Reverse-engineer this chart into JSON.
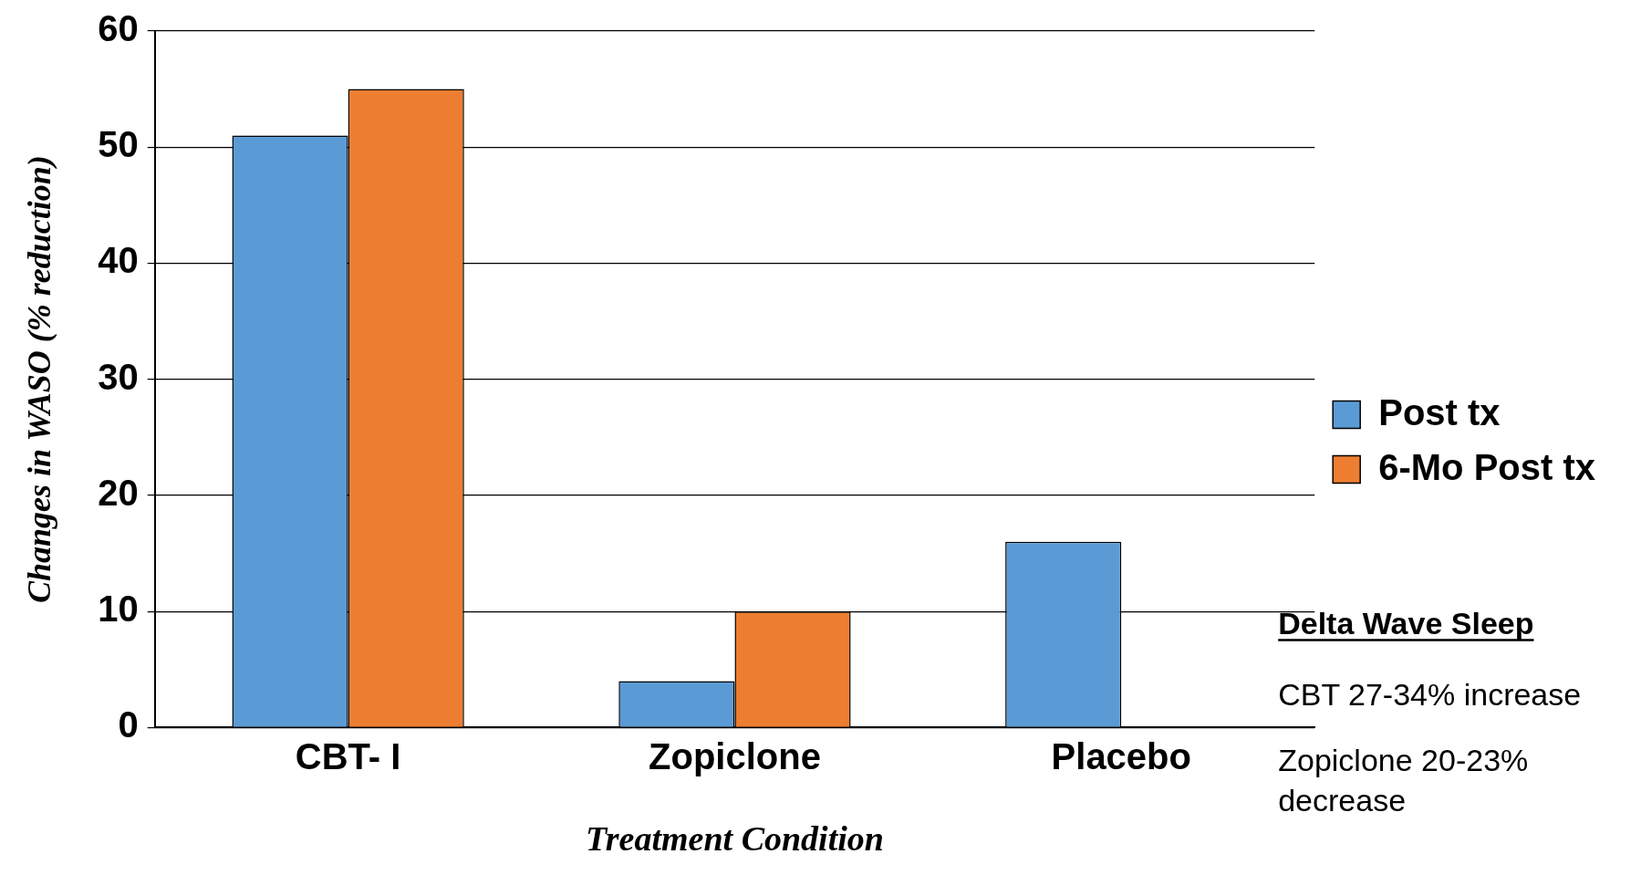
{
  "chart_data": {
    "type": "bar",
    "xlabel": "Treatment Condition",
    "ylabel": "Changes in WASO (% reduction)",
    "categories": [
      "CBT- I",
      "Zopiclone",
      "Placebo"
    ],
    "series": [
      {
        "name": "Post tx",
        "color": "#5b9bd5",
        "values": [
          51,
          4,
          16
        ]
      },
      {
        "name": "6-Mo Post tx",
        "color": "#ed7d31",
        "values": [
          55,
          10,
          null
        ]
      }
    ],
    "ylim": [
      0,
      60
    ],
    "yticks": [
      0,
      10,
      20,
      30,
      40,
      50,
      60
    ],
    "grid": "y",
    "legend": "right",
    "annotations": [
      "Delta Wave Sleep",
      "CBT 27-34% increase",
      "Zopiclone 20-23% decrease"
    ]
  }
}
